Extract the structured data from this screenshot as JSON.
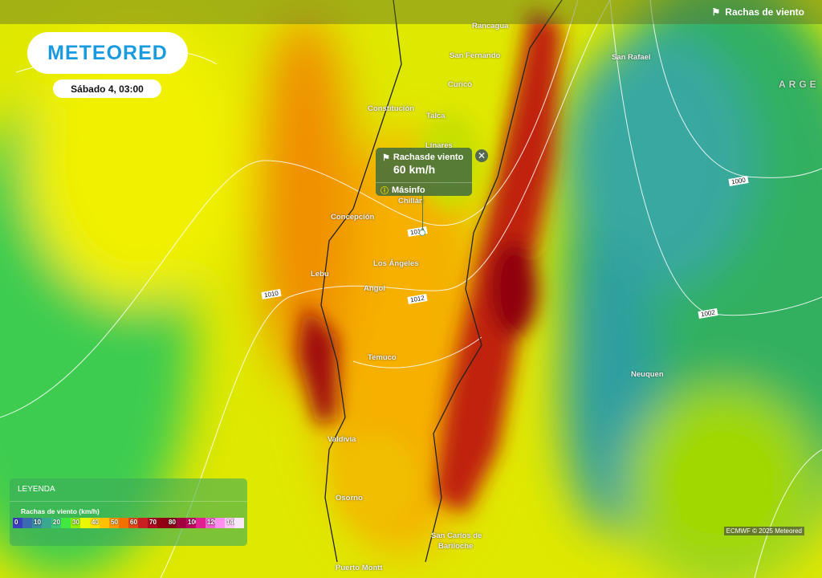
{
  "layer": {
    "title": "Rachas de viento",
    "icon": "wind-flag-icon"
  },
  "logo": "METEORED",
  "date": "Sábado 4, 03:00",
  "popup": {
    "title": "Rachasde viento",
    "value": "60 km/h",
    "more": "Másinfo"
  },
  "cities": [
    "Rancagua",
    "San Fernando",
    "San Rafael",
    "Curicó",
    "Constitución",
    "Talca",
    "Linares",
    "Chillán",
    "Concepción",
    "Los Ángeles",
    "Lebu",
    "Angol",
    "Temuco",
    "Neuquen",
    "Valdivia",
    "Osorno",
    "San Carlos de",
    "Bariloche",
    "Puerto Montt",
    "ARGE"
  ],
  "isobars": [
    "1010",
    "1012",
    "1000",
    "1002",
    "1010"
  ],
  "legend": {
    "header": "LEYENDA",
    "subtitle": "Rachas de viento (km/h)",
    "colors": [
      "#3a3fc0",
      "#3a6ab0",
      "#3a8aa0",
      "#3aa890",
      "#38c878",
      "#40e840",
      "#90f000",
      "#e8f800",
      "#ffe000",
      "#ffc000",
      "#ff9800",
      "#f07000",
      "#e04818",
      "#c82020",
      "#b00820",
      "#900010",
      "#880018",
      "#a00040",
      "#c00060",
      "#e02090",
      "#f060d0",
      "#ff90f0",
      "#ffc8f8",
      "#f8e8f8"
    ],
    "labels": [
      "0",
      "",
      "10",
      "",
      "20",
      "",
      "30",
      "",
      "40",
      "",
      "50",
      "",
      "60",
      "",
      "70",
      "",
      "80",
      "",
      "100",
      "",
      "120",
      "",
      "140",
      ""
    ]
  },
  "credit": "ECMWF © 2025 Meteored"
}
